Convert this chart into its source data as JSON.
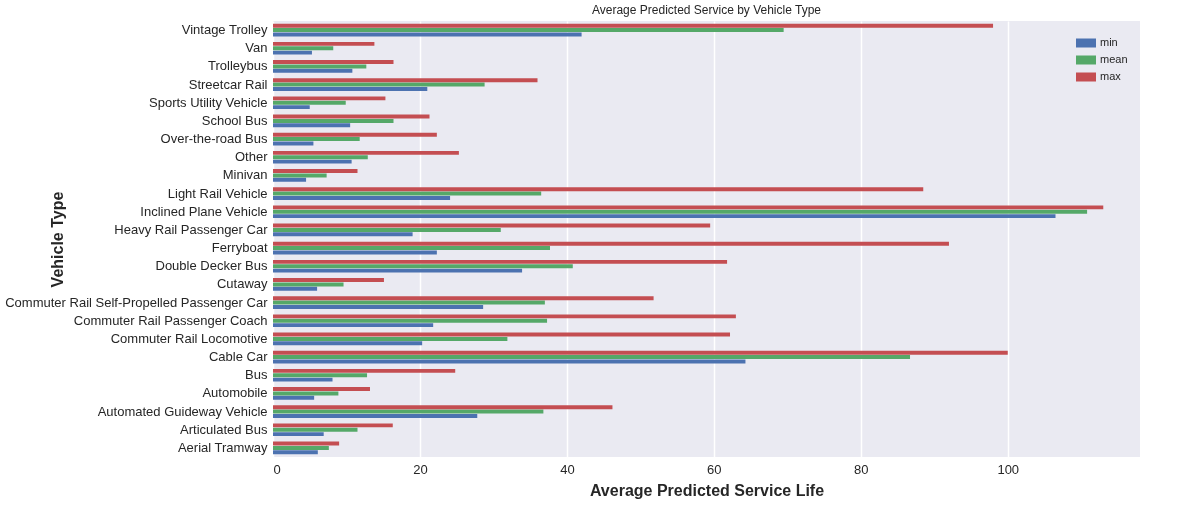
{
  "chart_data": {
    "type": "bar",
    "orientation": "horizontal",
    "title": "Average Predicted Service by Vehicle Type",
    "xlabel": "Average Predicted Service Life",
    "ylabel": "Vehicle Type",
    "categories": [
      "Vintage Trolley",
      "Van",
      "Trolleybus",
      "Streetcar Rail",
      "Sports Utility Vehicle",
      "School Bus",
      "Over-the-road Bus",
      "Other",
      "Minivan",
      "Light Rail Vehicle",
      "Inclined Plane Vehicle",
      "Heavy Rail Passenger Car",
      "Ferryboat",
      "Double Decker Bus",
      "Cutaway",
      "Commuter Rail Self-Propelled Passenger Car",
      "Commuter Rail Passenger Coach",
      "Commuter Rail Locomotive",
      "Cable Car",
      "Bus",
      "Automobile",
      "Automated Guideway Vehicle",
      "Articulated Bus",
      "Aerial Tramway"
    ],
    "series": [
      {
        "name": "min",
        "color": "#4c72b0",
        "values": [
          42,
          5.3,
          10.8,
          21,
          5,
          10.5,
          5.5,
          10.7,
          4.5,
          24.1,
          106.5,
          19,
          22.3,
          33.9,
          6,
          28.6,
          21.8,
          20.3,
          64.3,
          8.1,
          5.6,
          27.8,
          6.9,
          6.1
        ]
      },
      {
        "name": "mean",
        "color": "#55a868",
        "values": [
          69.5,
          8.2,
          12.7,
          28.8,
          9.9,
          16.4,
          11.8,
          12.9,
          7.3,
          36.5,
          110.8,
          31,
          37.7,
          40.8,
          9.6,
          37,
          37.3,
          31.9,
          86.7,
          12.8,
          8.9,
          36.8,
          11.5,
          7.6
        ]
      },
      {
        "name": "max",
        "color": "#c44e52",
        "values": [
          98,
          13.8,
          16.4,
          36,
          15.3,
          21.3,
          22.3,
          25.3,
          11.5,
          88.5,
          113,
          59.5,
          92,
          61.8,
          15.1,
          51.8,
          63,
          62.2,
          100,
          24.8,
          13.2,
          46.2,
          16.3,
          9
        ]
      }
    ],
    "xlim": [
      0,
      118
    ],
    "xticks": [
      0,
      20,
      40,
      60,
      80,
      100
    ],
    "grid": true,
    "legend": "top right"
  }
}
